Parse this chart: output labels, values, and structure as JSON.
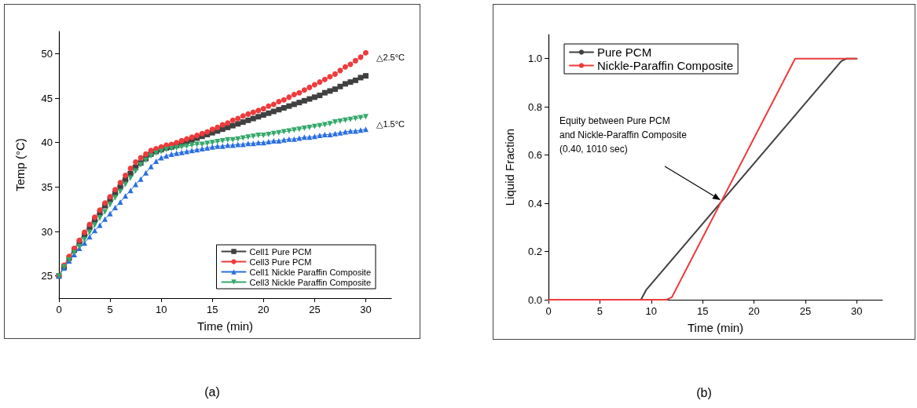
{
  "chart_data": [
    {
      "type": "line",
      "title": "(a)",
      "xlabel": "Time (min)",
      "ylabel": "Temp (°C)",
      "xlim": [
        0,
        32.5
      ],
      "ylim": [
        22.5,
        52.5
      ],
      "xticks": [
        0,
        5,
        10,
        15,
        20,
        25,
        30
      ],
      "yticks": [
        25,
        30,
        35,
        40,
        45,
        50
      ],
      "grid": false,
      "legend": "bottom right",
      "x": [
        0,
        0.5,
        1,
        1.5,
        2,
        2.5,
        3,
        3.5,
        4,
        4.5,
        5,
        5.5,
        6,
        6.5,
        7,
        7.5,
        8,
        8.5,
        9,
        9.5,
        10,
        10.5,
        11,
        11.5,
        12,
        12.5,
        13,
        13.5,
        14,
        14.5,
        15,
        15.5,
        16,
        16.5,
        17,
        17.5,
        18,
        18.5,
        19,
        19.5,
        20,
        20.5,
        21,
        21.5,
        22,
        22.5,
        23,
        23.5,
        24,
        24.5,
        25,
        25.5,
        26,
        26.5,
        27,
        27.5,
        28,
        28.5,
        29,
        29.5,
        30
      ],
      "series": [
        {
          "name": "Cell1 Pure PCM",
          "color": "#404040",
          "marker": "square",
          "values": [
            25.0,
            26.0,
            27.0,
            27.9,
            28.7,
            29.6,
            30.5,
            31.3,
            32.1,
            32.9,
            33.6,
            34.3,
            35.0,
            35.8,
            36.5,
            37.2,
            37.7,
            38.2,
            38.7,
            39.0,
            39.2,
            39.4,
            39.5,
            39.7,
            39.9,
            40.1,
            40.3,
            40.5,
            40.7,
            40.9,
            41.1,
            41.3,
            41.5,
            41.7,
            41.9,
            42.1,
            42.3,
            42.5,
            42.7,
            42.9,
            43.1,
            43.3,
            43.5,
            43.7,
            43.9,
            44.1,
            44.3,
            44.5,
            44.7,
            44.9,
            45.1,
            45.3,
            45.6,
            45.8,
            46.0,
            46.3,
            46.6,
            46.8,
            47.0,
            47.3,
            47.5
          ]
        },
        {
          "name": "Cell3 Pure PCM",
          "color": "#ee3b3b",
          "marker": "circle",
          "values": [
            25.0,
            26.2,
            27.2,
            28.1,
            29.0,
            29.9,
            30.8,
            31.6,
            32.4,
            33.2,
            33.9,
            34.7,
            35.5,
            36.3,
            37.1,
            37.8,
            38.3,
            38.7,
            39.1,
            39.3,
            39.5,
            39.7,
            39.8,
            40.0,
            40.2,
            40.4,
            40.6,
            40.8,
            41.0,
            41.2,
            41.5,
            41.7,
            42.0,
            42.2,
            42.5,
            42.7,
            43.0,
            43.2,
            43.4,
            43.6,
            43.8,
            44.1,
            44.3,
            44.6,
            44.8,
            45.1,
            45.4,
            45.6,
            45.9,
            46.2,
            46.5,
            46.8,
            47.1,
            47.4,
            47.7,
            48.1,
            48.5,
            48.8,
            49.2,
            49.6,
            50.1
          ]
        },
        {
          "name": "Cell1 Nickle Paraffin Composite",
          "color": "#2a6fe0",
          "marker": "triangle",
          "values": [
            25.0,
            25.9,
            26.7,
            27.4,
            28.1,
            28.7,
            29.4,
            30.1,
            30.7,
            31.4,
            32.0,
            32.7,
            33.3,
            34.0,
            34.6,
            35.3,
            35.9,
            36.6,
            37.3,
            37.9,
            38.3,
            38.5,
            38.7,
            38.8,
            38.9,
            39.0,
            39.1,
            39.2,
            39.3,
            39.4,
            39.5,
            39.6,
            39.6,
            39.7,
            39.7,
            39.8,
            39.8,
            39.9,
            39.9,
            40.0,
            40.0,
            40.1,
            40.2,
            40.2,
            40.3,
            40.4,
            40.4,
            40.5,
            40.6,
            40.6,
            40.7,
            40.8,
            40.9,
            40.9,
            41.0,
            41.1,
            41.2,
            41.3,
            41.3,
            41.4,
            41.5
          ]
        },
        {
          "name": "Cell3 Nickle Paraffin Composite",
          "color": "#34a86a",
          "marker": "triangle-down",
          "values": [
            25.0,
            26.0,
            26.8,
            27.6,
            28.3,
            29.1,
            29.9,
            30.7,
            31.5,
            32.2,
            33.0,
            33.8,
            34.5,
            35.3,
            36.0,
            36.8,
            37.5,
            38.0,
            38.5,
            38.8,
            39.0,
            39.2,
            39.3,
            39.4,
            39.5,
            39.6,
            39.7,
            39.8,
            39.8,
            39.9,
            40.0,
            40.1,
            40.2,
            40.3,
            40.3,
            40.4,
            40.5,
            40.6,
            40.7,
            40.8,
            40.8,
            40.9,
            41.0,
            41.1,
            41.2,
            41.3,
            41.4,
            41.5,
            41.6,
            41.7,
            41.8,
            41.9,
            42.0,
            42.1,
            42.3,
            42.4,
            42.5,
            42.6,
            42.7,
            42.8,
            42.9
          ]
        }
      ],
      "annotations": [
        "△2.5°C",
        "△1.5°C"
      ]
    },
    {
      "type": "line",
      "title": "(b)",
      "xlabel": "Time (min)",
      "ylabel": "Liquid Fraction",
      "xlim": [
        0,
        32.5
      ],
      "ylim": [
        0,
        1.1
      ],
      "xticks": [
        0,
        5,
        10,
        15,
        20,
        25,
        30
      ],
      "yticks": [
        {
          "value": 0,
          "label": "0.0"
        },
        {
          "value": 0.2,
          "label": "0.2"
        },
        {
          "value": 0.4,
          "label": "0.4"
        },
        {
          "value": 0.6,
          "label": "0.6"
        },
        {
          "value": 0.8,
          "label": "0.8"
        },
        {
          "value": 1,
          "label": "1.0"
        }
      ],
      "grid": false,
      "legend": "top left",
      "marker": "none",
      "series": [
        {
          "name": "Pure PCM",
          "color": "#404040",
          "x": [
            0,
            9,
            9.5,
            28.5,
            29,
            30
          ],
          "values": [
            0,
            0,
            0.04,
            0.99,
            1.0,
            1.0
          ]
        },
        {
          "name": "Nickle-Paraffin Composite",
          "color": "#ee3b3b",
          "x": [
            0,
            11.5,
            12,
            24,
            30
          ],
          "values": [
            0,
            0,
            0.01,
            1.0,
            1.0
          ]
        }
      ],
      "annotations": [
        "Equity between Pure PCM\nand Nickle-Paraffin Composite\n(0.40, 1010 sec)"
      ]
    }
  ]
}
